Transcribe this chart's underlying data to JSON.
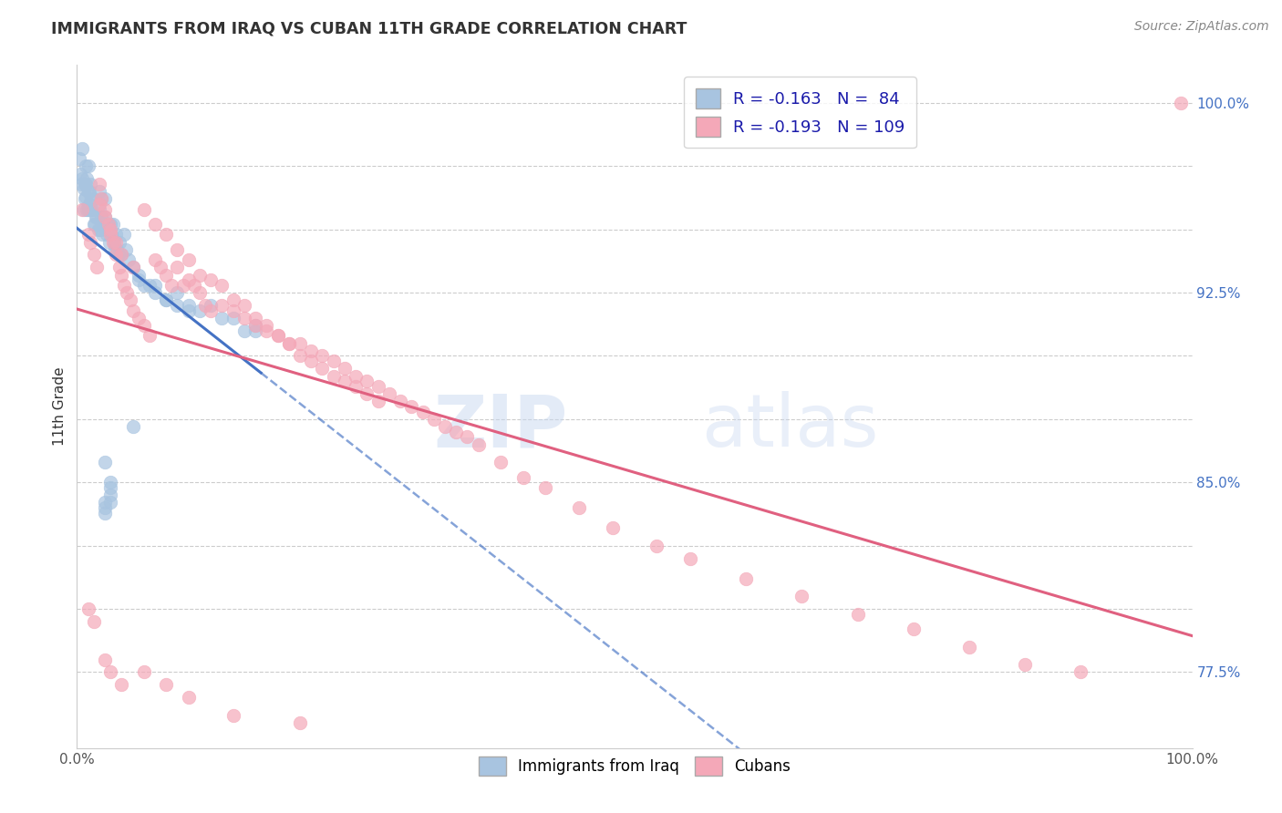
{
  "title": "IMMIGRANTS FROM IRAQ VS CUBAN 11TH GRADE CORRELATION CHART",
  "source": "Source: ZipAtlas.com",
  "ylabel": "11th Grade",
  "xlim": [
    0.0,
    1.0
  ],
  "ylim": [
    0.745,
    1.015
  ],
  "right_tick_color": "#4472c4",
  "legend_r_iraq": "-0.163",
  "legend_n_iraq": "84",
  "legend_r_cuban": "-0.193",
  "legend_n_cuban": "109",
  "iraq_color": "#a8c4e0",
  "cuban_color": "#f4a8b8",
  "iraq_line_color": "#4472c4",
  "cuban_line_color": "#e06080",
  "watermark_zip": "ZIP",
  "watermark_atlas": "atlas",
  "iraq_scatter_x": [
    0.002,
    0.003,
    0.004,
    0.005,
    0.005,
    0.006,
    0.006,
    0.007,
    0.007,
    0.008,
    0.008,
    0.008,
    0.009,
    0.009,
    0.01,
    0.01,
    0.01,
    0.011,
    0.011,
    0.012,
    0.012,
    0.013,
    0.014,
    0.015,
    0.015,
    0.016,
    0.017,
    0.018,
    0.019,
    0.02,
    0.02,
    0.021,
    0.022,
    0.022,
    0.023,
    0.024,
    0.025,
    0.025,
    0.026,
    0.027,
    0.028,
    0.029,
    0.03,
    0.031,
    0.032,
    0.033,
    0.034,
    0.035,
    0.036,
    0.037,
    0.038,
    0.04,
    0.042,
    0.044,
    0.046,
    0.05,
    0.055,
    0.06,
    0.065,
    0.07,
    0.08,
    0.09,
    0.1,
    0.11,
    0.14,
    0.16,
    0.025,
    0.03,
    0.05,
    0.025,
    0.03,
    0.055,
    0.07,
    0.08,
    0.09,
    0.1,
    0.12,
    0.13,
    0.15,
    0.16,
    0.025,
    0.03,
    0.025,
    0.03
  ],
  "iraq_scatter_y": [
    0.978,
    0.972,
    0.968,
    0.982,
    0.97,
    0.966,
    0.958,
    0.968,
    0.962,
    0.975,
    0.968,
    0.963,
    0.97,
    0.958,
    0.975,
    0.965,
    0.958,
    0.965,
    0.96,
    0.968,
    0.958,
    0.962,
    0.958,
    0.962,
    0.952,
    0.952,
    0.955,
    0.955,
    0.95,
    0.965,
    0.958,
    0.95,
    0.962,
    0.955,
    0.948,
    0.952,
    0.962,
    0.955,
    0.95,
    0.948,
    0.952,
    0.945,
    0.952,
    0.948,
    0.952,
    0.945,
    0.942,
    0.948,
    0.942,
    0.94,
    0.945,
    0.94,
    0.948,
    0.942,
    0.938,
    0.935,
    0.932,
    0.928,
    0.928,
    0.925,
    0.922,
    0.92,
    0.918,
    0.918,
    0.915,
    0.912,
    0.858,
    0.85,
    0.872,
    0.842,
    0.845,
    0.93,
    0.928,
    0.922,
    0.925,
    0.92,
    0.92,
    0.915,
    0.91,
    0.91,
    0.84,
    0.848,
    0.838,
    0.842
  ],
  "cuban_scatter_x": [
    0.005,
    0.01,
    0.012,
    0.015,
    0.018,
    0.02,
    0.022,
    0.025,
    0.028,
    0.03,
    0.032,
    0.035,
    0.038,
    0.04,
    0.042,
    0.045,
    0.048,
    0.05,
    0.055,
    0.06,
    0.065,
    0.07,
    0.075,
    0.08,
    0.085,
    0.09,
    0.095,
    0.1,
    0.105,
    0.11,
    0.115,
    0.12,
    0.13,
    0.14,
    0.15,
    0.16,
    0.17,
    0.18,
    0.19,
    0.2,
    0.21,
    0.22,
    0.23,
    0.24,
    0.25,
    0.26,
    0.27,
    0.28,
    0.29,
    0.3,
    0.31,
    0.32,
    0.33,
    0.34,
    0.35,
    0.36,
    0.38,
    0.4,
    0.42,
    0.45,
    0.48,
    0.52,
    0.55,
    0.6,
    0.65,
    0.7,
    0.75,
    0.8,
    0.85,
    0.9,
    0.02,
    0.025,
    0.03,
    0.035,
    0.04,
    0.05,
    0.06,
    0.07,
    0.08,
    0.09,
    0.1,
    0.11,
    0.12,
    0.13,
    0.14,
    0.15,
    0.16,
    0.17,
    0.18,
    0.19,
    0.2,
    0.21,
    0.22,
    0.23,
    0.24,
    0.25,
    0.26,
    0.27,
    0.01,
    0.015,
    0.025,
    0.03,
    0.04,
    0.06,
    0.08,
    0.1,
    0.14,
    0.2,
    0.99
  ],
  "cuban_scatter_y": [
    0.958,
    0.948,
    0.945,
    0.94,
    0.935,
    0.968,
    0.962,
    0.958,
    0.952,
    0.948,
    0.945,
    0.94,
    0.935,
    0.932,
    0.928,
    0.925,
    0.922,
    0.918,
    0.915,
    0.912,
    0.908,
    0.938,
    0.935,
    0.932,
    0.928,
    0.935,
    0.928,
    0.93,
    0.928,
    0.925,
    0.92,
    0.918,
    0.92,
    0.918,
    0.915,
    0.912,
    0.91,
    0.908,
    0.905,
    0.905,
    0.902,
    0.9,
    0.898,
    0.895,
    0.892,
    0.89,
    0.888,
    0.885,
    0.882,
    0.88,
    0.878,
    0.875,
    0.872,
    0.87,
    0.868,
    0.865,
    0.858,
    0.852,
    0.848,
    0.84,
    0.832,
    0.825,
    0.82,
    0.812,
    0.805,
    0.798,
    0.792,
    0.785,
    0.778,
    0.775,
    0.96,
    0.955,
    0.95,
    0.945,
    0.94,
    0.935,
    0.958,
    0.952,
    0.948,
    0.942,
    0.938,
    0.932,
    0.93,
    0.928,
    0.922,
    0.92,
    0.915,
    0.912,
    0.908,
    0.905,
    0.9,
    0.898,
    0.895,
    0.892,
    0.89,
    0.888,
    0.885,
    0.882,
    0.8,
    0.795,
    0.78,
    0.775,
    0.77,
    0.775,
    0.77,
    0.765,
    0.758,
    0.755,
    1.0
  ]
}
